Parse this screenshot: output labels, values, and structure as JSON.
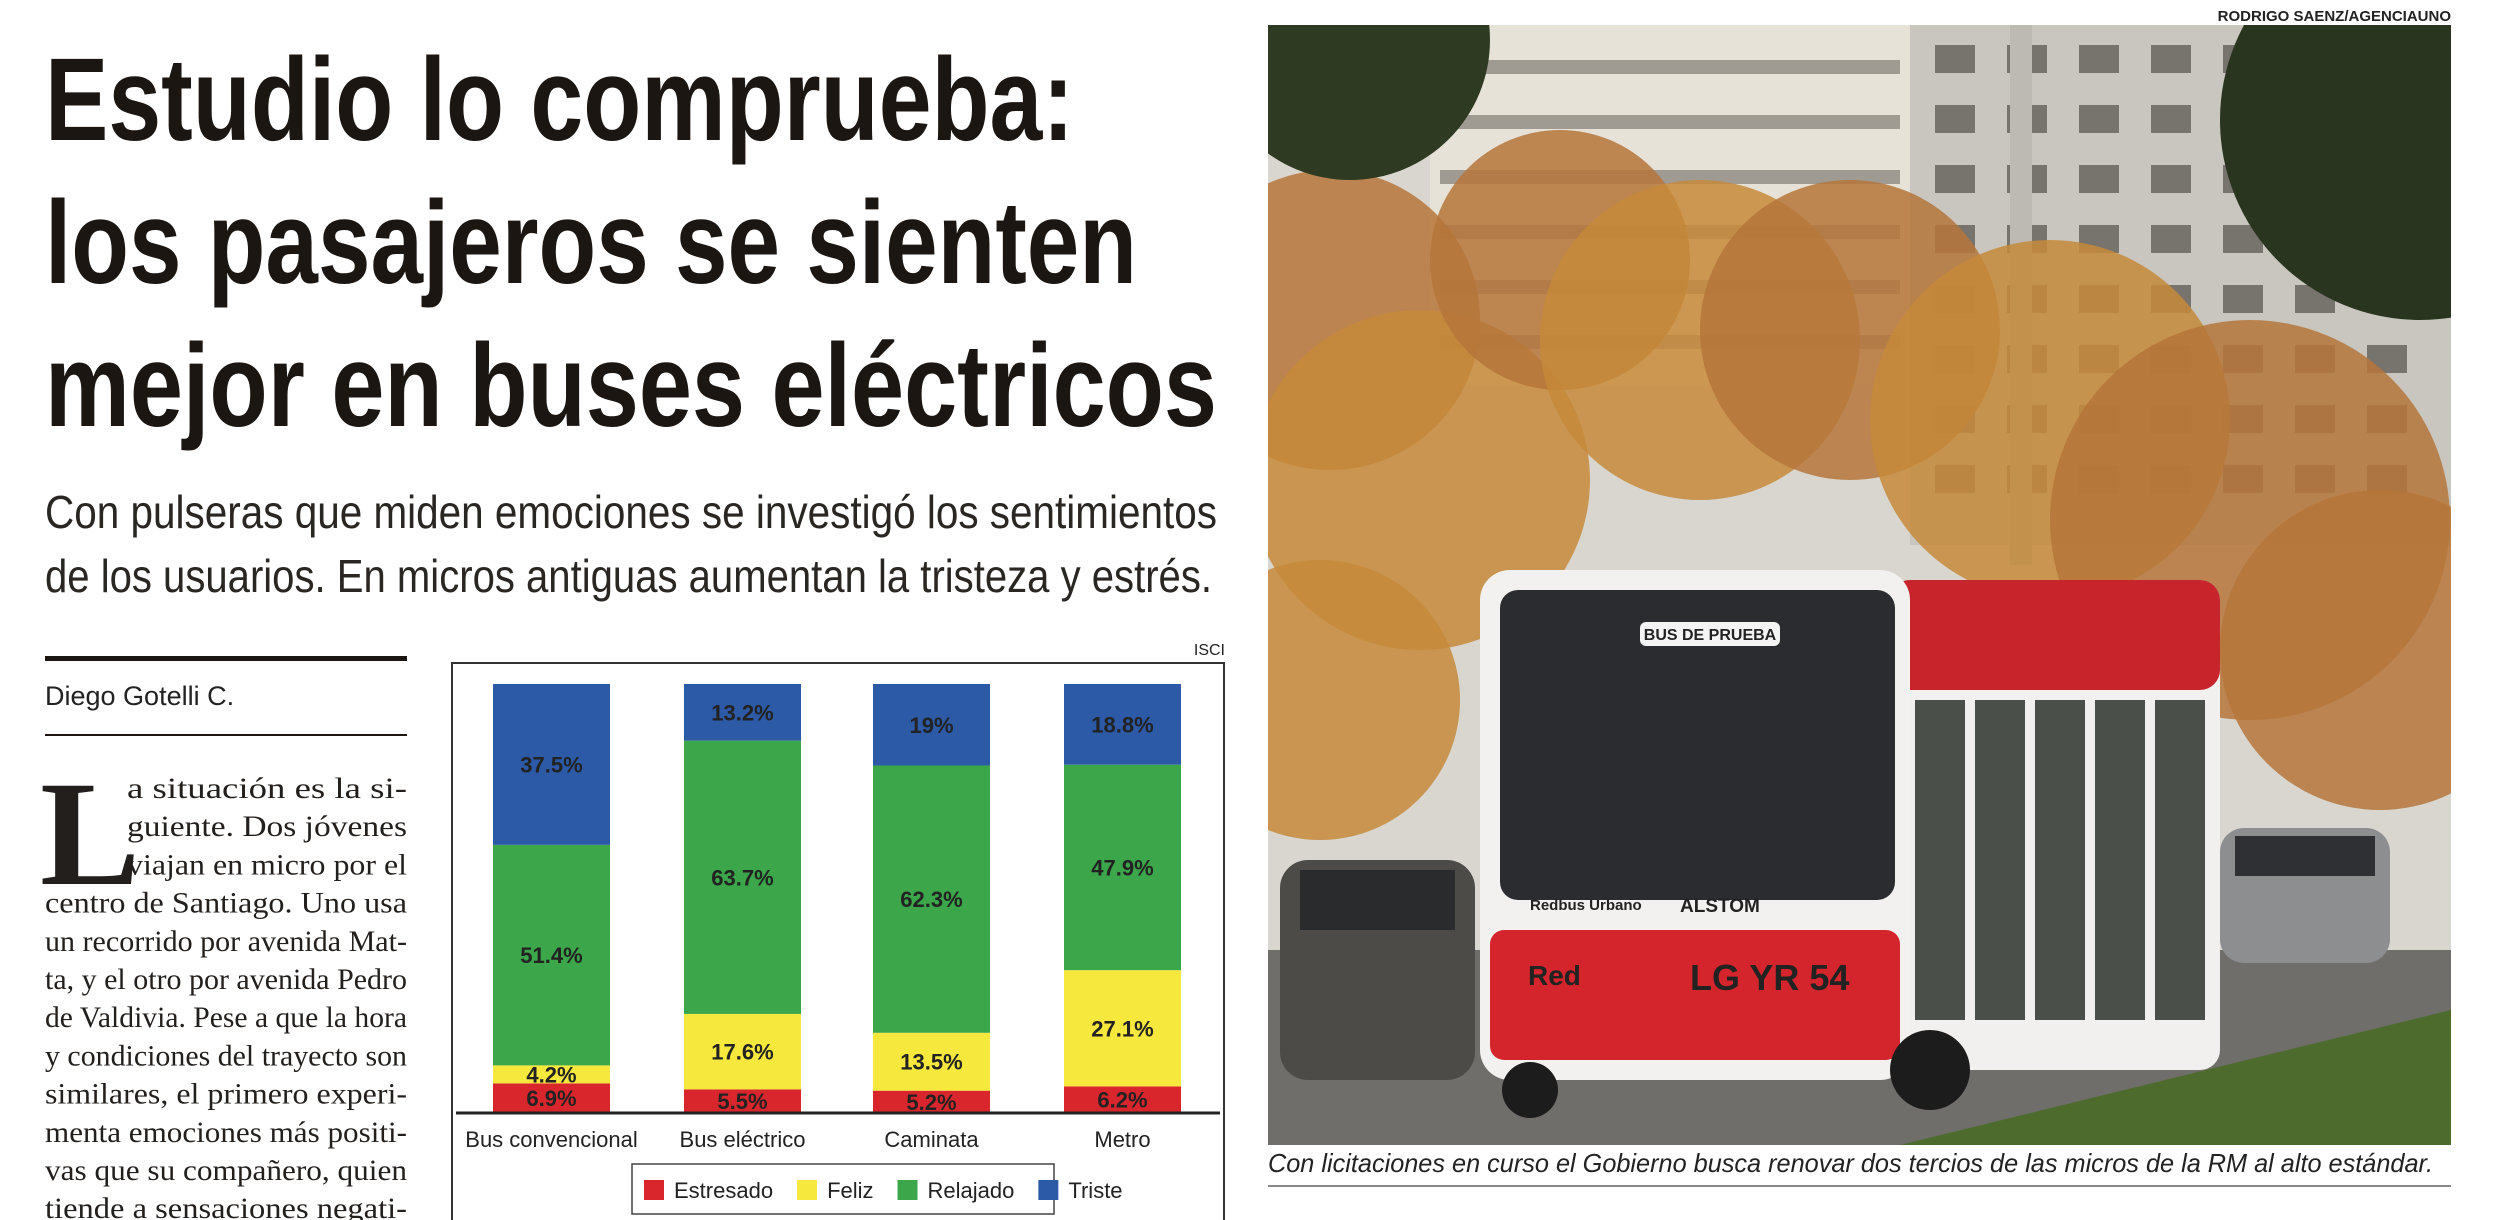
{
  "headline": {
    "lines": [
      "Estudio lo comprueba:",
      "los pasajeros se sienten",
      "mejor en buses eléctricos"
    ]
  },
  "subhead": {
    "lines": [
      "Con pulseras que miden emociones se investigó los sentimientos",
      "de los usuarios. En micros antiguas aumentan la tristeza y estrés."
    ]
  },
  "byline": "Diego Gotelli C.",
  "body": {
    "drop_cap": "L",
    "lines": [
      "a situación es la si-",
      "guiente. Dos jóvenes",
      "viajan en micro por el",
      "centro de Santiago. Uno usa",
      "un recorrido por avenida Mat-",
      "ta, y el otro por avenida Pedro",
      "de Valdivia. Pese a que la hora",
      "y condiciones del trayecto son",
      "similares, el primero experi-",
      "menta emociones más positi-",
      "vas que su compañero, quien",
      "tiende a sensaciones negati-"
    ]
  },
  "chart_source": "ISCI",
  "chart_data": {
    "type": "stacked_bar",
    "categories": [
      "Bus convencional",
      "Bus eléctrico",
      "Caminata",
      "Metro"
    ],
    "series": [
      {
        "name": "Estresado",
        "color": "#d8262c",
        "values": [
          6.9,
          5.5,
          5.2,
          6.2
        ],
        "value_labels": [
          "6.9%",
          "5.5%",
          "5.2%",
          "6.2%"
        ]
      },
      {
        "name": "Feliz",
        "color": "#f6e83c",
        "values": [
          4.2,
          17.6,
          13.5,
          27.1
        ],
        "value_labels": [
          "4.2%",
          "17.6%",
          "13.5%",
          "27.1%"
        ]
      },
      {
        "name": "Relajado",
        "color": "#3ba64a",
        "values": [
          51.4,
          63.7,
          62.3,
          47.9
        ],
        "value_labels": [
          "51.4%",
          "63.7%",
          "62.3%",
          "47.9%"
        ]
      },
      {
        "name": "Triste",
        "color": "#2c5aa6",
        "values": [
          37.5,
          13.2,
          19,
          18.8
        ],
        "value_labels": [
          "37.5%",
          "13.2%",
          "19%",
          "18.8%"
        ]
      }
    ],
    "ylim": [
      0,
      100
    ],
    "legend": "bottom"
  },
  "photo": {
    "credit": "RODRIGO SAENZ/AGENCIAUNO",
    "caption": "Con licitaciones en curso el Gobierno busca renovar dos tercios de las micros de la RM al alto estándar.",
    "signs": {
      "route": "BUS DE PRUEBA",
      "operator": "Redbus Urbano",
      "maker": "ALSTOM",
      "brand": "Red",
      "plate": "LG YR 54"
    }
  }
}
